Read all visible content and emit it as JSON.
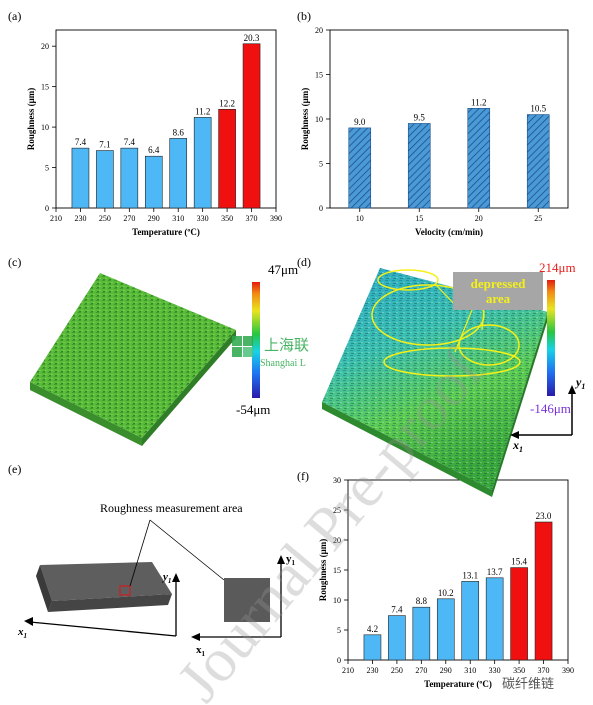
{
  "panels": {
    "a": "(a)",
    "b": "(b)",
    "c": "(c)",
    "d": "(d)",
    "e": "(e)",
    "f": "(f)"
  },
  "chart_data": [
    {
      "id": "a",
      "type": "bar",
      "x_ticks": [
        "210",
        "230",
        "250",
        "270",
        "290",
        "310",
        "330",
        "350",
        "370",
        "390"
      ],
      "categories": [
        "230",
        "250",
        "270",
        "290",
        "310",
        "330",
        "350",
        "370"
      ],
      "values": [
        7.4,
        7.1,
        7.4,
        6.4,
        8.6,
        11.2,
        12.2,
        20.3
      ],
      "data_labels": [
        "7.4",
        "7.1",
        "7.4",
        "6.4",
        "8.6",
        "11.2",
        "12.2",
        "20.3"
      ],
      "colors": [
        "#4db8f5",
        "#4db8f5",
        "#4db8f5",
        "#4db8f5",
        "#4db8f5",
        "#4db8f5",
        "#f01010",
        "#f01010"
      ],
      "xlabel": "Temperature (ºC)",
      "ylabel": "Roughness (μm)",
      "ylim": [
        0,
        22
      ],
      "y_ticks": [
        "0",
        "5",
        "10",
        "15",
        "20"
      ],
      "grid": false
    },
    {
      "id": "b",
      "type": "bar",
      "categories": [
        "10",
        "15",
        "20",
        "25"
      ],
      "values": [
        9.0,
        9.5,
        11.2,
        10.5
      ],
      "data_labels": [
        "9.0",
        "9.5",
        "11.2",
        "10.5"
      ],
      "pattern": "hatched",
      "bar_color": "#4a9ad8",
      "xlabel": "Velocity (cm/min)",
      "ylabel": "Roughness (μm)",
      "ylim": [
        0,
        20
      ],
      "y_ticks": [
        "0",
        "5",
        "10",
        "15",
        "20"
      ],
      "grid": false
    },
    {
      "id": "f",
      "type": "bar",
      "x_ticks": [
        "210",
        "230",
        "250",
        "270",
        "290",
        "310",
        "330",
        "350",
        "370",
        "390"
      ],
      "categories": [
        "230",
        "250",
        "270",
        "290",
        "310",
        "330",
        "350",
        "370"
      ],
      "values": [
        4.2,
        7.4,
        8.8,
        10.2,
        13.1,
        13.7,
        15.4,
        23.0
      ],
      "data_labels": [
        "4.2",
        "7.4",
        "8.8",
        "10.2",
        "13.1",
        "13.7",
        "15.4",
        "23.0"
      ],
      "colors": [
        "#4db8f5",
        "#4db8f5",
        "#4db8f5",
        "#4db8f5",
        "#4db8f5",
        "#4db8f5",
        "#f01010",
        "#f01010"
      ],
      "xlabel": "Temperature (ºC)",
      "ylabel": "Roughness (μm)",
      "ylim": [
        0,
        30
      ],
      "y_ticks": [
        "0",
        "5",
        "10",
        "15",
        "20",
        "25",
        "30"
      ],
      "grid": false
    }
  ],
  "surface_c": {
    "max_label": "47μm",
    "min_label": "-54μm",
    "max_color": "#e8201c",
    "min_color": "#7a32d8"
  },
  "surface_d": {
    "max_label": "214μm",
    "min_label": "-146μm",
    "annotation": "depressed\narea",
    "axis_y": "y",
    "axis_y_sub": "1",
    "axis_x": "x",
    "axis_x_sub": "1"
  },
  "panel_e": {
    "callout": "Roughness measurement area",
    "axis_y": "y",
    "axis_y_sub": "1",
    "axis_x": "x",
    "axis_x_sub": "1"
  },
  "logo_text": {
    "mark": "上海联",
    "sub": "Shanghai L"
  },
  "watermark": {
    "main": "Journal Pre-proof",
    "footer": "碳纤维链"
  }
}
